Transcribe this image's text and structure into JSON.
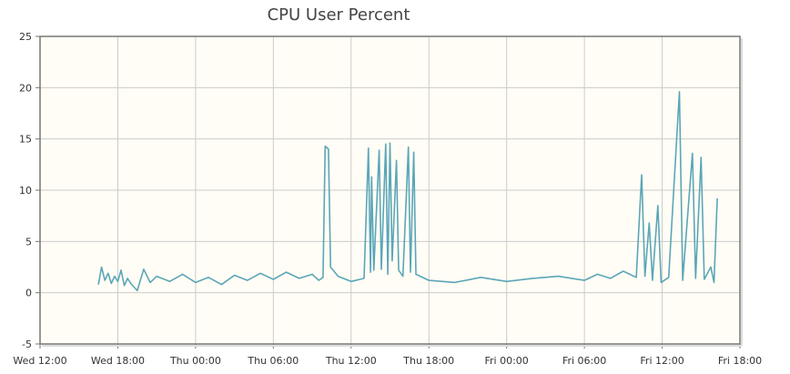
{
  "chart_data": {
    "type": "line",
    "title": "CPU User Percent",
    "xlabel": "",
    "ylabel": "",
    "x_axis": "time",
    "x_ticks": [
      "Wed 12:00",
      "Wed 18:00",
      "Thu 00:00",
      "Thu 06:00",
      "Thu 12:00",
      "Thu 18:00",
      "Fri 00:00",
      "Fri 06:00",
      "Fri 12:00",
      "Fri 18:00"
    ],
    "xlim": [
      "Wed 12:00",
      "Fri 18:00"
    ],
    "ylim": [
      -5,
      25
    ],
    "y_ticks": [
      -5,
      0,
      5,
      10,
      15,
      20,
      25
    ],
    "grid": true,
    "legend": "none",
    "colors": {
      "line": "#5ba6b8",
      "plot_bg": "#fffdf5",
      "grid": "#cccccc",
      "frame": "#777777"
    },
    "series": [
      {
        "points": [
          [
            "Wed 16:30",
            0.8
          ],
          [
            "Wed 16:45",
            2.5
          ],
          [
            "Wed 17:00",
            1.2
          ],
          [
            "Wed 17:15",
            1.9
          ],
          [
            "Wed 17:30",
            0.9
          ],
          [
            "Wed 17:45",
            1.6
          ],
          [
            "Wed 18:00",
            1.1
          ],
          [
            "Wed 18:15",
            2.2
          ],
          [
            "Wed 18:30",
            0.7
          ],
          [
            "Wed 18:45",
            1.4
          ],
          [
            "Wed 19:00",
            0.9
          ],
          [
            "Wed 19:30",
            0.2
          ],
          [
            "Wed 20:00",
            2.3
          ],
          [
            "Wed 20:30",
            1.0
          ],
          [
            "Wed 21:00",
            1.6
          ],
          [
            "Wed 22:00",
            1.1
          ],
          [
            "Wed 23:00",
            1.8
          ],
          [
            "Thu 00:00",
            1.0
          ],
          [
            "Thu 01:00",
            1.5
          ],
          [
            "Thu 02:00",
            0.8
          ],
          [
            "Thu 03:00",
            1.7
          ],
          [
            "Thu 04:00",
            1.2
          ],
          [
            "Thu 05:00",
            1.9
          ],
          [
            "Thu 06:00",
            1.3
          ],
          [
            "Thu 07:00",
            2.0
          ],
          [
            "Thu 08:00",
            1.4
          ],
          [
            "Thu 09:00",
            1.8
          ],
          [
            "Thu 09:30",
            1.2
          ],
          [
            "Thu 09:50",
            1.5
          ],
          [
            "Thu 10:00",
            14.3
          ],
          [
            "Thu 10:15",
            14.0
          ],
          [
            "Thu 10:25",
            2.5
          ],
          [
            "Thu 11:00",
            1.6
          ],
          [
            "Thu 12:00",
            1.1
          ],
          [
            "Thu 13:00",
            1.4
          ],
          [
            "Thu 13:20",
            14.1
          ],
          [
            "Thu 13:30",
            2.0
          ],
          [
            "Thu 13:35",
            11.3
          ],
          [
            "Thu 13:45",
            2.2
          ],
          [
            "Thu 14:10",
            13.9
          ],
          [
            "Thu 14:20",
            2.3
          ],
          [
            "Thu 14:40",
            14.5
          ],
          [
            "Thu 14:50",
            1.8
          ],
          [
            "Thu 15:00",
            14.6
          ],
          [
            "Thu 15:10",
            3.1
          ],
          [
            "Thu 15:30",
            12.9
          ],
          [
            "Thu 15:40",
            2.2
          ],
          [
            "Thu 16:00",
            1.6
          ],
          [
            "Thu 16:25",
            14.2
          ],
          [
            "Thu 16:35",
            2.0
          ],
          [
            "Thu 16:50",
            13.7
          ],
          [
            "Thu 17:00",
            1.8
          ],
          [
            "Thu 18:00",
            1.2
          ],
          [
            "Thu 20:00",
            1.0
          ],
          [
            "Thu 22:00",
            1.5
          ],
          [
            "Fri 00:00",
            1.1
          ],
          [
            "Fri 02:00",
            1.4
          ],
          [
            "Fri 04:00",
            1.6
          ],
          [
            "Fri 06:00",
            1.2
          ],
          [
            "Fri 07:00",
            1.8
          ],
          [
            "Fri 08:00",
            1.4
          ],
          [
            "Fri 09:00",
            2.1
          ],
          [
            "Fri 10:00",
            1.5
          ],
          [
            "Fri 10:25",
            11.5
          ],
          [
            "Fri 10:40",
            1.6
          ],
          [
            "Fri 11:00",
            6.8
          ],
          [
            "Fri 11:15",
            1.2
          ],
          [
            "Fri 11:40",
            8.5
          ],
          [
            "Fri 11:55",
            1.0
          ],
          [
            "Fri 12:30",
            1.5
          ],
          [
            "Fri 13:20",
            19.6
          ],
          [
            "Fri 13:35",
            1.2
          ],
          [
            "Fri 14:20",
            13.6
          ],
          [
            "Fri 14:35",
            1.4
          ],
          [
            "Fri 15:00",
            13.2
          ],
          [
            "Fri 15:15",
            1.3
          ],
          [
            "Fri 15:45",
            2.5
          ],
          [
            "Fri 16:00",
            1.0
          ],
          [
            "Fri 16:15",
            9.2
          ]
        ]
      }
    ]
  }
}
